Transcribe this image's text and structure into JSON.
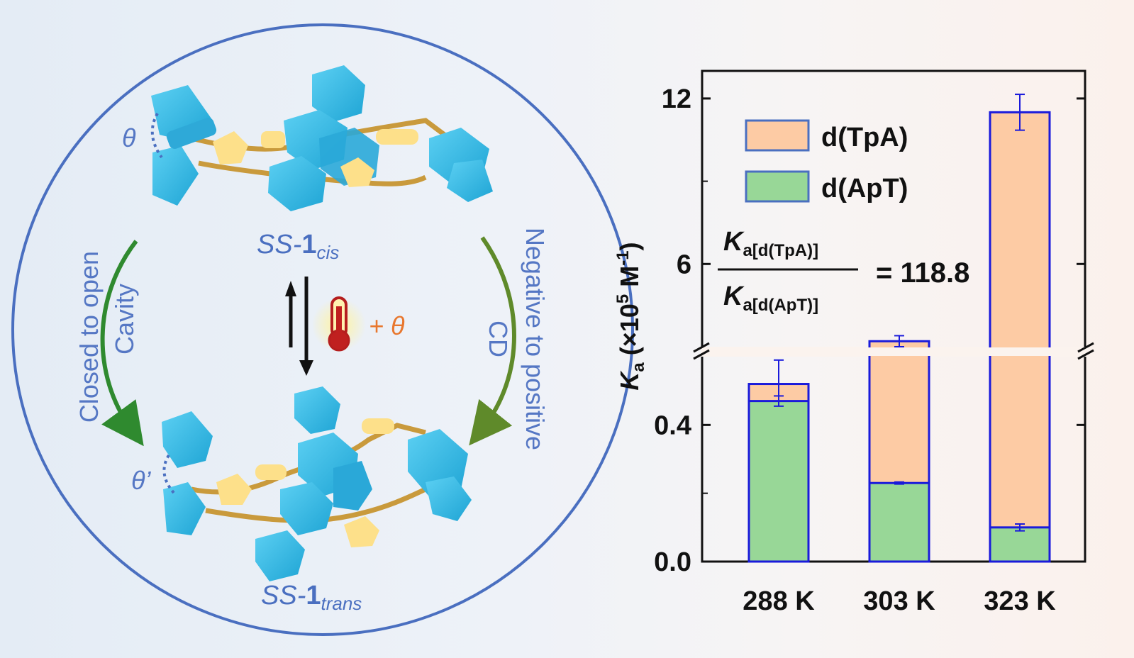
{
  "scheme": {
    "top_molecule": {
      "prefix": "SS-",
      "bold": "1",
      "sub": "cis"
    },
    "bottom_molecule": {
      "prefix": "SS-",
      "bold": "1",
      "sub": "trans"
    },
    "theta": "θ",
    "theta_prime": "θ’",
    "left_arrow_line1": "Closed to open",
    "left_arrow_line2": "Cavity",
    "right_arrow_line1": "Negative to positive",
    "right_arrow_line2": "CD",
    "center_condition": "+ θ",
    "icon": "thermometer-icon",
    "colors": {
      "circle": "#4a6fc0",
      "text": "#5577c4",
      "molecule": "#35b5e0",
      "sulfur": "#fde08a",
      "arrow_left": "#2f8a2f",
      "arrow_right": "#5f8a2a",
      "condition": "#e8772e"
    }
  },
  "ratio": {
    "numerator_symbol": "K",
    "numerator_sub": "a[d(TpA)]",
    "denominator_symbol": "K",
    "denominator_sub": "a[d(ApT)]",
    "value_text": "= 118.8"
  },
  "chart_data": {
    "type": "bar",
    "categories": [
      "288 K",
      "303 K",
      "323 K"
    ],
    "series": [
      {
        "name": "d(TpA)",
        "color": "#fdcba4",
        "values": [
          0.52,
          3.2,
          11.5
        ],
        "errors": [
          0.07,
          0.2,
          0.65
        ]
      },
      {
        "name": "d(ApT)",
        "color": "#98d797",
        "values": [
          0.47,
          0.23,
          0.1
        ],
        "errors": [
          0.015,
          0.003,
          0.01
        ]
      }
    ],
    "ylabel_symbol": "K",
    "ylabel_sub": "a",
    "ylabel_rest": " (×10",
    "ylabel_exp": "5",
    "ylabel_unit": " M",
    "ylabel_unit_exp": "-1",
    "ylabel_close": ")",
    "y_lower": {
      "range": [
        0,
        0.6
      ],
      "ticks": [
        "0.0",
        "0.4"
      ]
    },
    "y_upper": {
      "range": [
        3,
        13
      ],
      "ticks": [
        "6",
        "12"
      ]
    },
    "axis_break": true,
    "legend_position": "top-left",
    "bar_edge_color": "#1a1adb"
  }
}
